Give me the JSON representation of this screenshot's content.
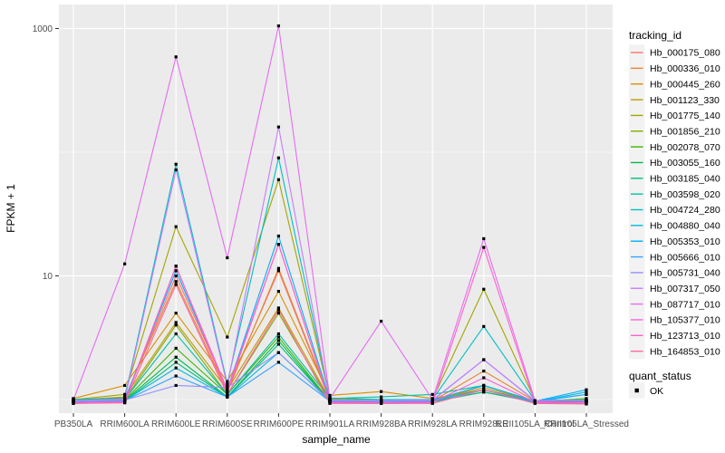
{
  "figure": {
    "background": "#FFFFFF",
    "panel_background": "#EBEBEB",
    "grid_color": "#FFFFFF",
    "tick_color": "#333333",
    "tick_label_color": "#4D4D4D",
    "legend_key_fill": "#F2F2F2"
  },
  "chart_data": {
    "type": "line",
    "title": "",
    "xlabel": "sample_name",
    "ylabel": "FPKM + 1",
    "y_scale": "log10",
    "ylim": [
      0.78,
      1500
    ],
    "grid": true,
    "legend_position": "right",
    "y_ticks": [
      {
        "label": "1000",
        "value": 1000
      },
      {
        "label": "10",
        "value": 10
      }
    ],
    "y_minor_gridlines": [
      100,
      1
    ],
    "categories": [
      "PB350LA",
      "RRIM600LA",
      "RRIM600LE",
      "RRIM600SE",
      "RRIM600PE",
      "RRIM901LA",
      "RRIM928BA",
      "RRIM928LA",
      "RRIM928LE",
      "RRII105LA_Control",
      "RRII105LA_Stressed"
    ],
    "marker": {
      "shape": "square",
      "color": "#000000",
      "size": 3.2
    },
    "series": [
      {
        "name": "Hb_000175_080",
        "color": "#F8766D",
        "values": [
          0.98,
          1.0,
          10.0,
          1.2,
          11.0,
          0.98,
          0.97,
          0.98,
          1.3,
          0.97,
          0.96
        ]
      },
      {
        "name": "Hb_000336_010",
        "color": "#EA8331",
        "values": [
          1.0,
          1.02,
          9.0,
          1.15,
          11.5,
          1.0,
          0.98,
          0.97,
          1.7,
          0.97,
          0.97
        ]
      },
      {
        "name": "Hb_000445_260",
        "color": "#D89000",
        "values": [
          1.02,
          1.3,
          5.0,
          1.4,
          7.5,
          1.08,
          1.16,
          1.02,
          1.2,
          0.98,
          0.98
        ]
      },
      {
        "name": "Hb_001123_330",
        "color": "#C09B00",
        "values": [
          0.99,
          1.05,
          4.2,
          1.2,
          5.5,
          1.0,
          0.98,
          0.99,
          1.25,
          0.97,
          0.97
        ]
      },
      {
        "name": "Hb_001775_140",
        "color": "#A3A500",
        "values": [
          1.0,
          1.1,
          25.0,
          3.2,
          60.0,
          1.02,
          1.0,
          1.0,
          7.8,
          0.98,
          0.99
        ]
      },
      {
        "name": "Hb_001856_210",
        "color": "#7CAE00",
        "values": [
          0.97,
          1.0,
          4.0,
          1.1,
          5.0,
          0.98,
          0.97,
          0.98,
          1.2,
          0.96,
          1.02
        ]
      },
      {
        "name": "Hb_002078_070",
        "color": "#39B600",
        "values": [
          0.96,
          0.99,
          2.6,
          1.1,
          3.2,
          0.97,
          0.96,
          0.97,
          1.2,
          0.96,
          0.97
        ]
      },
      {
        "name": "Hb_003055_160",
        "color": "#00BB4E",
        "values": [
          0.97,
          0.98,
          2.2,
          1.05,
          3.0,
          0.96,
          0.96,
          0.96,
          1.15,
          0.96,
          0.96
        ]
      },
      {
        "name": "Hb_003185_040",
        "color": "#00BF7D",
        "values": [
          0.96,
          0.97,
          2.0,
          1.05,
          2.8,
          0.96,
          0.95,
          0.96,
          1.15,
          0.95,
          0.96
        ]
      },
      {
        "name": "Hb_003598_020",
        "color": "#00C1A3",
        "values": [
          0.98,
          1.0,
          3.4,
          1.1,
          3.4,
          1.02,
          1.05,
          1.1,
          1.3,
          0.97,
          1.1
        ]
      },
      {
        "name": "Hb_004724_280",
        "color": "#00BFC4",
        "values": [
          1.0,
          1.03,
          80.0,
          1.35,
          90.0,
          1.03,
          1.0,
          1.0,
          3.9,
          0.98,
          1.0
        ]
      },
      {
        "name": "Hb_004880_040",
        "color": "#00BAE0",
        "values": [
          0.97,
          0.98,
          1.8,
          1.05,
          2.4,
          0.97,
          0.97,
          0.98,
          1.2,
          0.96,
          1.15
        ]
      },
      {
        "name": "Hb_005353_010",
        "color": "#00B0F6",
        "values": [
          0.98,
          1.0,
          11.0,
          1.2,
          21.0,
          0.99,
          0.98,
          0.99,
          1.3,
          0.97,
          1.2
        ]
      },
      {
        "name": "Hb_005666_010",
        "color": "#35A2FF",
        "values": [
          0.96,
          0.98,
          1.55,
          1.05,
          2.0,
          0.97,
          0.96,
          0.97,
          1.2,
          0.96,
          1.1
        ]
      },
      {
        "name": "Hb_005731_040",
        "color": "#9590FF",
        "values": [
          0.97,
          0.99,
          1.3,
          1.25,
          2.4,
          0.98,
          0.97,
          0.98,
          2.1,
          0.97,
          0.98
        ]
      },
      {
        "name": "Hb_007317_050",
        "color": "#C77CFF",
        "values": [
          0.98,
          1.0,
          72.0,
          1.3,
          160.0,
          0.99,
          0.98,
          0.99,
          2.1,
          0.98,
          0.98
        ]
      },
      {
        "name": "Hb_087717_010",
        "color": "#E76BF3",
        "values": [
          0.99,
          12.5,
          590.0,
          14.0,
          1050.0,
          1.02,
          4.3,
          1.0,
          20.0,
          0.98,
          0.97
        ]
      },
      {
        "name": "Hb_105377_010",
        "color": "#FA62DB",
        "values": [
          0.94,
          0.96,
          12.0,
          1.2,
          18.0,
          0.95,
          0.94,
          0.95,
          1.5,
          0.95,
          0.94
        ]
      },
      {
        "name": "Hb_123713_010",
        "color": "#FF61CC",
        "values": [
          0.93,
          0.95,
          12.0,
          1.15,
          18.0,
          0.94,
          0.93,
          0.94,
          17.0,
          0.94,
          0.93
        ]
      },
      {
        "name": "Hb_164853_010",
        "color": "#FF67A4",
        "values": [
          0.93,
          0.94,
          8.5,
          1.1,
          5.3,
          0.93,
          0.93,
          0.93,
          1.2,
          0.93,
          0.92
        ]
      }
    ],
    "legend": {
      "tracking": {
        "title": "tracking_id"
      },
      "quant": {
        "title": "quant_status",
        "items": [
          {
            "label": "OK",
            "marker": "black-square"
          }
        ]
      }
    }
  }
}
